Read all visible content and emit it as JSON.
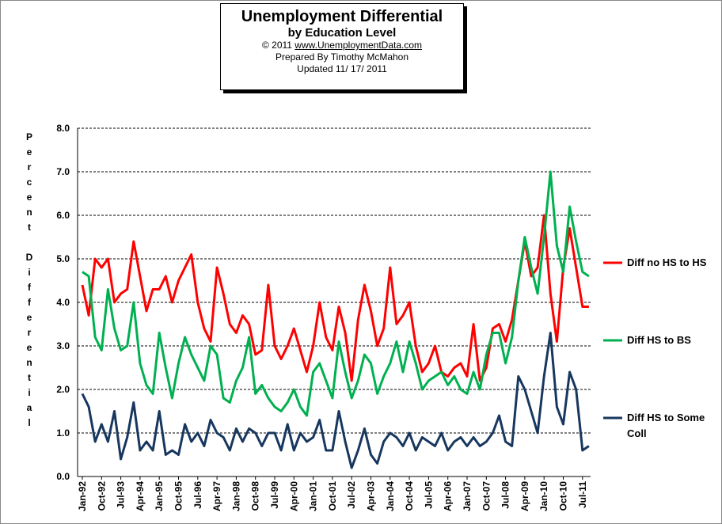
{
  "chart_data": {
    "type": "line",
    "title": "Unemployment Differential",
    "subtitle": "by Education Level",
    "copyright": "© 2011",
    "source": "www.UnemploymentData.com",
    "prepared_by": "Prepared By Timothy McMahon",
    "updated": "Updated 11/ 17/ 2011",
    "y_label": "Percent Differential",
    "categories": [
      "Jan-92",
      null,
      null,
      "Oct-92",
      null,
      null,
      "Jul-93",
      null,
      null,
      "Apr-94",
      null,
      null,
      "Jan-95",
      null,
      null,
      "Oct-95",
      null,
      null,
      "Jul-96",
      null,
      null,
      "Apr-97",
      null,
      null,
      "Jan-98",
      null,
      null,
      "Oct-98",
      null,
      null,
      "Jul-99",
      null,
      null,
      "Apr-00",
      null,
      null,
      "Jan-01",
      null,
      null,
      "Oct-01",
      null,
      null,
      "Jul-02",
      null,
      null,
      "Apr-03",
      null,
      null,
      "Jan-04",
      null,
      null,
      "Oct-04",
      null,
      null,
      "Jul-05",
      null,
      null,
      "Apr-06",
      null,
      null,
      "Jan-07",
      null,
      null,
      "Oct-07",
      null,
      null,
      "Jul-08",
      null,
      null,
      "Apr-09",
      null,
      null,
      "Jan-10",
      null,
      null,
      "Oct-10",
      null,
      null,
      "Jul-11",
      null
    ],
    "series": [
      {
        "name": "Diff no HS to HS",
        "color": "#ff0000",
        "values": [
          4.4,
          3.7,
          5.0,
          4.8,
          5.0,
          4.0,
          4.2,
          4.3,
          5.4,
          4.6,
          3.8,
          4.3,
          4.3,
          4.6,
          4.0,
          4.5,
          4.8,
          5.1,
          4.0,
          3.4,
          3.1,
          4.8,
          4.2,
          3.5,
          3.3,
          3.7,
          3.5,
          2.8,
          2.9,
          4.4,
          3.0,
          2.7,
          3.0,
          3.4,
          2.9,
          2.4,
          3.0,
          4.0,
          3.2,
          2.9,
          3.9,
          3.3,
          2.2,
          3.6,
          4.4,
          3.8,
          3.0,
          3.4,
          4.8,
          3.5,
          3.7,
          4.0,
          3.0,
          2.4,
          2.6,
          3.0,
          2.4,
          2.3,
          2.5,
          2.6,
          2.3,
          3.5,
          2.2,
          2.5,
          3.4,
          3.5,
          3.1,
          3.6,
          4.5,
          5.4,
          4.6,
          4.8,
          6.0,
          4.2,
          3.1,
          4.8,
          5.7,
          4.8,
          3.9,
          3.9
        ]
      },
      {
        "name": "Diff HS to BS",
        "color": "#00b050",
        "values": [
          4.7,
          4.6,
          3.2,
          2.9,
          4.3,
          3.4,
          2.9,
          3.0,
          4.0,
          2.6,
          2.1,
          1.9,
          3.3,
          2.5,
          1.8,
          2.6,
          3.2,
          2.8,
          2.5,
          2.2,
          3.0,
          2.8,
          1.8,
          1.7,
          2.2,
          2.5,
          3.2,
          1.9,
          2.1,
          1.8,
          1.6,
          1.5,
          1.7,
          2.0,
          1.6,
          1.4,
          2.4,
          2.6,
          2.2,
          1.8,
          3.1,
          2.4,
          1.8,
          2.2,
          2.8,
          2.6,
          1.9,
          2.3,
          2.6,
          3.1,
          2.4,
          3.1,
          2.6,
          2.0,
          2.2,
          2.3,
          2.4,
          2.1,
          2.3,
          2.0,
          1.9,
          2.4,
          2.0,
          2.8,
          3.3,
          3.3,
          2.6,
          3.2,
          4.5,
          5.5,
          4.8,
          4.2,
          5.5,
          7.0,
          5.3,
          4.7,
          6.2,
          5.4,
          4.7,
          4.6
        ]
      },
      {
        "name": "Diff HS to Some Coll",
        "color": "#17375e",
        "values": [
          1.9,
          1.6,
          0.8,
          1.2,
          0.8,
          1.5,
          0.4,
          0.9,
          1.7,
          0.6,
          0.8,
          0.6,
          1.5,
          0.5,
          0.6,
          0.5,
          1.2,
          0.8,
          1.0,
          0.7,
          1.3,
          1.0,
          0.9,
          0.6,
          1.1,
          0.8,
          1.1,
          1.0,
          0.7,
          1.0,
          1.0,
          0.6,
          1.2,
          0.6,
          1.0,
          0.8,
          0.9,
          1.3,
          0.6,
          0.6,
          1.5,
          0.8,
          0.2,
          0.6,
          1.1,
          0.5,
          0.3,
          0.8,
          1.0,
          0.9,
          0.7,
          1.0,
          0.6,
          0.9,
          0.8,
          0.7,
          1.0,
          0.6,
          0.8,
          0.9,
          0.7,
          0.9,
          0.7,
          0.8,
          1.0,
          1.4,
          0.8,
          0.7,
          2.3,
          2.0,
          1.5,
          1.0,
          2.3,
          3.3,
          1.6,
          1.2,
          2.4,
          2.0,
          0.6,
          0.7
        ]
      }
    ],
    "ylim": [
      0,
      8
    ],
    "yticks": [
      {
        "value": 0,
        "label": "0.0"
      },
      {
        "value": 1,
        "label": "1.0"
      },
      {
        "value": 2,
        "label": "2.0"
      },
      {
        "value": 3,
        "label": "3.0"
      },
      {
        "value": 4,
        "label": "4.0"
      },
      {
        "value": 5,
        "label": "5.0"
      },
      {
        "value": 6,
        "label": "6.0"
      },
      {
        "value": 7,
        "label": "7.0"
      },
      {
        "value": 8,
        "label": "8.0"
      }
    ],
    "grid": true,
    "legend": "right"
  }
}
